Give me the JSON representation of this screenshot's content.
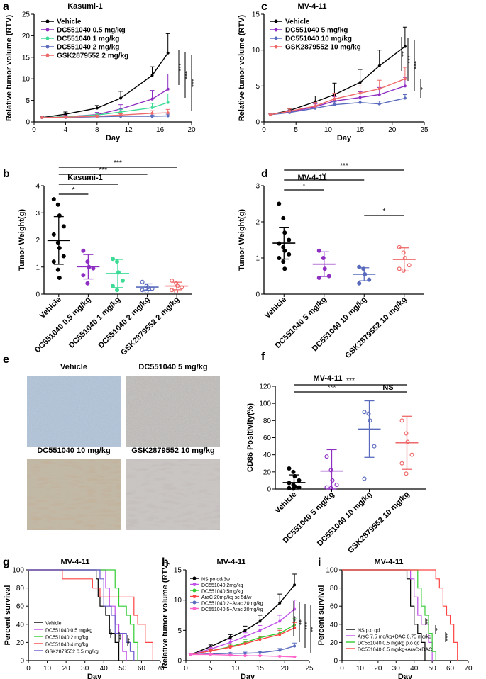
{
  "panel_labels": [
    "a",
    "b",
    "c",
    "d",
    "e",
    "f",
    "g",
    "h",
    "i"
  ],
  "chart_data": [
    {
      "id": "a",
      "type": "line",
      "title": "Kasumi-1",
      "xlabel": "Day",
      "ylabel": "Relative tumor volume (RTV)",
      "xlim": [
        0,
        20
      ],
      "ylim": [
        0,
        25
      ],
      "xticks": [
        0,
        4,
        8,
        12,
        16,
        20
      ],
      "yticks": [
        0,
        5,
        10,
        15,
        20,
        25
      ],
      "legend_position": "top-left",
      "significance": [
        "***",
        "***",
        "***"
      ],
      "series": [
        {
          "name": "Vehicle",
          "color": "#000000",
          "x": [
            1,
            4,
            8,
            11,
            15,
            17
          ],
          "y": [
            1,
            1.8,
            3.2,
            5.5,
            10.8,
            16
          ],
          "err": [
            0.2,
            0.5,
            0.6,
            1.6,
            2.0,
            4.5
          ]
        },
        {
          "name": "DC551040  0.5 mg/kg",
          "color": "#8e2fc2",
          "x": [
            1,
            4,
            8,
            11,
            15,
            17
          ],
          "y": [
            1,
            1.2,
            1.7,
            3.0,
            5.3,
            7.6
          ],
          "err": [
            0.1,
            0.3,
            0.5,
            1.0,
            2.0,
            3.5
          ]
        },
        {
          "name": "DC551040  1 mg/kg",
          "color": "#3ddc97",
          "x": [
            1,
            4,
            8,
            11,
            15,
            17
          ],
          "y": [
            1,
            1.2,
            1.6,
            2.3,
            3.3,
            4.5
          ],
          "err": [
            0.1,
            0.2,
            0.4,
            0.6,
            1.0,
            2.0
          ]
        },
        {
          "name": "DC551040  2 mg/kg",
          "color": "#5a6bbd",
          "x": [
            1,
            4,
            8,
            11,
            15,
            17
          ],
          "y": [
            1,
            1.0,
            1.2,
            1.3,
            1.3,
            1.4
          ],
          "err": [
            0.1,
            0.1,
            0.2,
            0.2,
            0.3,
            0.4
          ]
        },
        {
          "name": "GSK2879552  2 mg/kg",
          "color": "#ee6a6a",
          "x": [
            1,
            4,
            8,
            11,
            15,
            17
          ],
          "y": [
            1,
            1.1,
            1.3,
            1.6,
            2.0,
            2.1
          ],
          "err": [
            0.1,
            0.2,
            0.3,
            0.3,
            0.6,
            0.8
          ]
        }
      ]
    },
    {
      "id": "c",
      "type": "line",
      "title": "MV-4-11",
      "xlabel": "Day",
      "ylabel": "Relative tumor volume (RTV)",
      "xlim": [
        0,
        25
      ],
      "ylim": [
        0,
        15
      ],
      "xticks": [
        0,
        5,
        10,
        15,
        20,
        25
      ],
      "yticks": [
        0,
        5,
        10,
        15
      ],
      "legend_position": "top-left",
      "significance": [
        "**",
        "***",
        "***",
        "*"
      ],
      "series": [
        {
          "name": "Vehicle",
          "color": "#000000",
          "x": [
            1,
            4,
            8,
            11,
            15,
            18,
            22
          ],
          "y": [
            1,
            1.6,
            2.8,
            3.8,
            5.5,
            7.8,
            10.5
          ],
          "err": [
            0.1,
            0.3,
            0.8,
            1.6,
            1.8,
            2.2,
            2.7
          ]
        },
        {
          "name": "DC551040 5 mg/kg",
          "color": "#8e2fc2",
          "x": [
            1,
            4,
            8,
            11,
            15,
            18,
            22
          ],
          "y": [
            1,
            1.4,
            2.1,
            2.9,
            3.4,
            3.8,
            5.0
          ],
          "err": [
            0.1,
            0.2,
            0.4,
            0.6,
            0.8,
            1.0,
            1.2
          ]
        },
        {
          "name": "DC551040 10 mg/kg",
          "color": "#5a6bbd",
          "x": [
            1,
            4,
            8,
            11,
            15,
            18,
            22
          ],
          "y": [
            1,
            1.3,
            1.9,
            2.4,
            2.7,
            2.5,
            3.3
          ],
          "err": [
            0.1,
            0.2,
            0.3,
            0.4,
            0.5,
            0.4,
            0.5
          ]
        },
        {
          "name": "GSK2879552 10 mg/kg",
          "color": "#ee6a6a",
          "x": [
            1,
            4,
            8,
            11,
            15,
            18,
            22
          ],
          "y": [
            1,
            1.5,
            2.2,
            3.2,
            4.0,
            4.6,
            6.0
          ],
          "err": [
            0.1,
            0.3,
            0.5,
            0.8,
            1.0,
            1.2,
            1.6
          ]
        }
      ]
    },
    {
      "id": "b",
      "type": "scatter",
      "title": "Kasumi-1",
      "xlabel": "",
      "ylabel": "Tumor Weight(g)",
      "ylim": [
        0,
        4
      ],
      "yticks": [
        0,
        1,
        2,
        3,
        4
      ],
      "categories": [
        "Vehicle",
        "DC551040  0.5 mg/kg",
        "DC551040  1 mg/kg",
        "DC551040  2 mg/kg",
        "GSK2879552  2 mg/kg"
      ],
      "colors": [
        "#000000",
        "#8e2fc2",
        "#3ddc97",
        "#5a6bbd",
        "#ee6a6a"
      ],
      "filled": [
        true,
        true,
        true,
        false,
        false
      ],
      "means": [
        1.98,
        1.01,
        0.76,
        0.26,
        0.3
      ],
      "sd": [
        0.88,
        0.45,
        0.52,
        0.12,
        0.14
      ],
      "points": [
        [
          3.5,
          3.3,
          2.9,
          2.5,
          2.2,
          1.9,
          1.7,
          1.4,
          1.2,
          0.9,
          0.6
        ],
        [
          1.6,
          1.2,
          1.0,
          0.95,
          0.7,
          0.4
        ],
        [
          1.3,
          1.2,
          0.8,
          0.5,
          0.3,
          0.15
        ],
        [
          0.45,
          0.3,
          0.25,
          0.2,
          0.15,
          0.1
        ],
        [
          0.5,
          0.4,
          0.3,
          0.25,
          0.15,
          0.1
        ]
      ],
      "significance": [
        {
          "from": 0,
          "to": 1,
          "label": "*"
        },
        {
          "from": 0,
          "to": 2,
          "label": "**"
        },
        {
          "from": 0,
          "to": 3,
          "label": "***"
        },
        {
          "from": 0,
          "to": 4,
          "label": "***"
        }
      ]
    },
    {
      "id": "d",
      "type": "scatter",
      "title": "MV-4-11",
      "xlabel": "",
      "ylabel": "Tumor Weight(g)",
      "ylim": [
        0,
        3
      ],
      "yticks": [
        0,
        1,
        2,
        3
      ],
      "categories": [
        "Vehicle",
        "DC551040 5 mg/kg",
        "DC551040 10 mg/kg",
        "GSK2879552 10 mg/kg"
      ],
      "colors": [
        "#000000",
        "#8e2fc2",
        "#5a6bbd",
        "#ee6a6a"
      ],
      "filled": [
        true,
        true,
        true,
        false
      ],
      "means": [
        1.41,
        0.83,
        0.55,
        0.96
      ],
      "sd": [
        0.44,
        0.34,
        0.18,
        0.32
      ],
      "points": [
        [
          2.5,
          2.1,
          1.7,
          1.5,
          1.4,
          1.3,
          1.2,
          1.1,
          1.0,
          0.9,
          0.7
        ],
        [
          1.2,
          1.0,
          0.7,
          0.5,
          0.45
        ],
        [
          0.75,
          0.7,
          0.55,
          0.4,
          0.3
        ],
        [
          1.3,
          1.15,
          1.0,
          0.8,
          0.7,
          0.65
        ]
      ],
      "significance": [
        {
          "from": 0,
          "to": 1,
          "label": "*"
        },
        {
          "from": 0,
          "to": 2,
          "label": "**"
        },
        {
          "from": 0,
          "to": 3,
          "label": "***"
        },
        {
          "from": 2,
          "to": 3,
          "label": "*"
        }
      ]
    },
    {
      "id": "f",
      "type": "scatter",
      "title": "MV-4-11",
      "xlabel": "",
      "ylabel": "CD86 Positivity(%)",
      "ylim": [
        0,
        120
      ],
      "yticks": [
        0,
        20,
        40,
        60,
        80,
        100,
        120
      ],
      "categories": [
        "Vehicle",
        "DC551040 5 mg/kg",
        "DC551040 10 mg/kg",
        "GSK2879552 10 mg/kg"
      ],
      "colors": [
        "#000000",
        "#8e2fc2",
        "#5a6bbd",
        "#ee6a6a"
      ],
      "filled": [
        true,
        false,
        false,
        false
      ],
      "means": [
        7.5,
        21,
        70,
        54
      ],
      "sd": [
        9,
        25,
        33,
        31
      ],
      "points": [
        [
          24,
          20,
          15,
          10,
          7,
          5,
          3,
          2,
          1,
          0.5
        ],
        [
          38,
          22,
          10,
          5,
          2,
          1
        ],
        [
          90,
          88,
          80,
          50,
          12
        ],
        [
          80,
          65,
          55,
          40,
          30,
          18
        ]
      ],
      "significance": [
        {
          "from": 0,
          "to": 2,
          "label": "***"
        },
        {
          "from": 0,
          "to": 3,
          "label": "***"
        },
        {
          "from": 2,
          "to": 3,
          "label": "NS"
        }
      ]
    },
    {
      "id": "g",
      "type": "line",
      "title": "MV-4-11",
      "xlabel": "Day",
      "ylabel": "Percent survival",
      "xlim": [
        0,
        70
      ],
      "ylim": [
        0,
        100
      ],
      "xticks": [
        0,
        10,
        20,
        30,
        40,
        50,
        60,
        70
      ],
      "yticks": [
        0,
        20,
        40,
        60,
        80,
        100
      ],
      "legend_position": "bottom-left",
      "significance": [
        "*",
        "**",
        "**"
      ],
      "series": [
        {
          "name": "Vehicle",
          "color": "#000000",
          "x": [
            0,
            36,
            37,
            38,
            41,
            43,
            46,
            48
          ],
          "y": [
            100,
            90,
            70,
            60,
            50,
            30,
            20,
            0
          ]
        },
        {
          "name": "DC551040 0.5 mg/kg",
          "color": "#c050e8",
          "x": [
            0,
            40,
            41,
            43,
            46,
            48,
            50,
            52
          ],
          "y": [
            100,
            100,
            80,
            60,
            40,
            30,
            10,
            0
          ]
        },
        {
          "name": "DC551040 2 mg/kg",
          "color": "#33cc33",
          "x": [
            0,
            44,
            46,
            48,
            52,
            54,
            56,
            58
          ],
          "y": [
            100,
            100,
            80,
            60,
            50,
            40,
            20,
            0
          ]
        },
        {
          "name": "DC551040 4 mg/kg",
          "color": "#ff4444",
          "x": [
            0,
            18,
            34,
            38,
            48,
            52,
            56,
            58,
            62,
            66
          ],
          "y": [
            100,
            90,
            80,
            70,
            70,
            70,
            50,
            40,
            20,
            0
          ]
        },
        {
          "name": "GSK2879552 0.5 mg/kg",
          "color": "#6a5acd",
          "x": [
            0,
            38,
            40,
            44,
            46,
            52,
            54,
            56
          ],
          "y": [
            100,
            90,
            60,
            50,
            30,
            20,
            10,
            0
          ]
        }
      ]
    },
    {
      "id": "h",
      "type": "line",
      "title": "MV-4-11",
      "xlabel": "Day",
      "ylabel": "Relative tumor volume (RTV)",
      "xlim": [
        0,
        25
      ],
      "ylim": [
        0,
        15
      ],
      "xticks": [
        0,
        5,
        10,
        15,
        20,
        25
      ],
      "yticks": [
        0,
        5,
        10,
        15
      ],
      "legend_position": "top-left",
      "significance": [
        "**",
        "**",
        "***",
        "**"
      ],
      "series": [
        {
          "name": "NS po qd/3w",
          "color": "#000000",
          "x": [
            1,
            5,
            9,
            12,
            15,
            19,
            22
          ],
          "y": [
            1,
            2.3,
            3.8,
            5.0,
            6.5,
            9.5,
            12.5
          ],
          "err": [
            0.1,
            0.3,
            0.5,
            0.7,
            1.0,
            1.5,
            1.8
          ]
        },
        {
          "name": "DC551040 2mg/kg",
          "color": "#c050e8",
          "x": [
            1,
            5,
            9,
            12,
            15,
            19,
            22
          ],
          "y": [
            1,
            1.9,
            3.0,
            4.0,
            5.0,
            6.5,
            8.5
          ],
          "err": [
            0.1,
            0.3,
            0.5,
            0.6,
            0.8,
            1.0,
            1.5
          ]
        },
        {
          "name": "DC551040 5mg/kg",
          "color": "#33cc33",
          "x": [
            1,
            5,
            9,
            12,
            15,
            19,
            22
          ],
          "y": [
            1,
            1.6,
            2.3,
            3.0,
            3.8,
            4.5,
            5.9
          ],
          "err": [
            0.1,
            0.2,
            0.4,
            0.5,
            0.6,
            0.8,
            1.0
          ]
        },
        {
          "name": "AraC 20mg/kg sc 5d/w",
          "color": "#ff4444",
          "x": [
            1,
            5,
            9,
            12,
            15,
            19,
            22
          ],
          "y": [
            1,
            1.6,
            2.2,
            2.8,
            3.5,
            4.3,
            5.4
          ],
          "err": [
            0.1,
            0.2,
            0.3,
            0.4,
            0.5,
            0.7,
            0.9
          ]
        },
        {
          "name": "DC551040 2+Arac 20mg/kg",
          "color": "#5a6bbd",
          "x": [
            1,
            5,
            9,
            12,
            15,
            19,
            22
          ],
          "y": [
            1,
            1.1,
            1.2,
            1.2,
            1.3,
            1.7,
            2.4
          ],
          "err": [
            0.1,
            0.1,
            0.1,
            0.2,
            0.2,
            0.3,
            0.5
          ]
        },
        {
          "name": "DC551040 5+Arac 20mg/kg",
          "color": "#ff66cc",
          "x": [
            1,
            5,
            9,
            12,
            15,
            19,
            22
          ],
          "y": [
            1,
            1.0,
            0.9,
            0.8,
            0.8,
            0.7,
            0.6
          ],
          "err": [
            0.1,
            0.1,
            0.1,
            0.1,
            0.1,
            0.1,
            0.1
          ]
        }
      ]
    },
    {
      "id": "i",
      "type": "line",
      "title": "MV-4-11",
      "xlabel": "Day",
      "ylabel": "Percent survival",
      "xlim": [
        0,
        70
      ],
      "ylim": [
        0,
        100
      ],
      "xticks": [
        0,
        10,
        20,
        30,
        40,
        50,
        60,
        70
      ],
      "yticks": [
        0,
        20,
        40,
        60,
        80,
        100
      ],
      "legend_position": "bottom-left",
      "significance": [
        "**",
        "*",
        "***"
      ],
      "series": [
        {
          "name": "NS p.o qd",
          "color": "#000000",
          "x": [
            0,
            36,
            38,
            40,
            42,
            44,
            46
          ],
          "y": [
            100,
            90,
            60,
            40,
            30,
            20,
            0
          ]
        },
        {
          "name": "AraC 7.5 mg/kg+DAC 0.75 mg/kg",
          "color": "#c050e8",
          "x": [
            0,
            38,
            40,
            42,
            44,
            48,
            50
          ],
          "y": [
            100,
            90,
            70,
            50,
            40,
            20,
            0
          ]
        },
        {
          "name": "DC551040 0.5 mg/kg p.o qd",
          "color": "#33cc33",
          "x": [
            0,
            40,
            42,
            44,
            46,
            48,
            50,
            52
          ],
          "y": [
            100,
            100,
            80,
            60,
            50,
            30,
            10,
            0
          ]
        },
        {
          "name": "DC551040 0.5 mg/kg+AraC+DAC",
          "color": "#ff4444",
          "x": [
            0,
            50,
            52,
            54,
            56,
            58,
            60,
            62,
            64
          ],
          "y": [
            100,
            100,
            90,
            80,
            60,
            50,
            40,
            20,
            0
          ]
        }
      ]
    }
  ],
  "images": {
    "panel": "e",
    "labels": [
      "Vehicle",
      "DC551040  5 mg/kg",
      "DC551040  10 mg/kg",
      "GSK2879552  10 mg/kg"
    ],
    "colors": [
      "#b8c8da",
      "#c6c3bd",
      "#c2b8a6",
      "#c9c5c3"
    ]
  }
}
